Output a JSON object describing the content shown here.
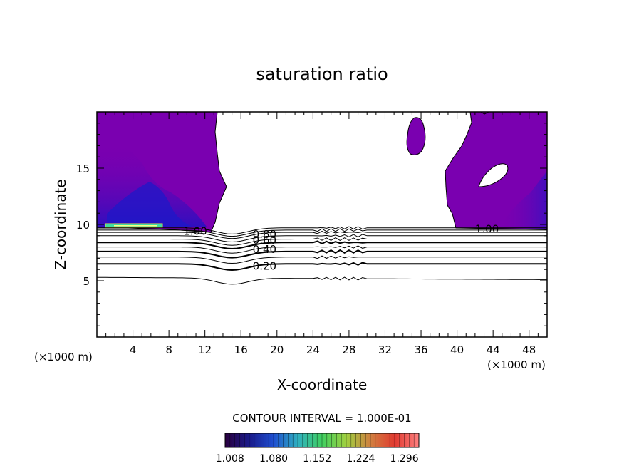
{
  "chart_data": {
    "type": "contour",
    "title": "saturation ratio",
    "xlabel": "X-coordinate",
    "ylabel": "Z-coordinate",
    "x_units_left": "(×1000 m)",
    "x_units_right": "(×1000 m)",
    "xlim": [
      0,
      50
    ],
    "ylim": [
      0,
      20
    ],
    "x_ticks": [
      4,
      8,
      12,
      16,
      20,
      24,
      28,
      32,
      36,
      40,
      44,
      48
    ],
    "y_ticks": [
      5,
      10,
      15
    ],
    "contour_labels": [
      {
        "text": "1.00",
        "x": 9.6,
        "z": 9.4
      },
      {
        "text": "1.00",
        "x": 42.0,
        "z": 9.6
      },
      {
        "text": "0.80",
        "x": 17.3,
        "z": 9.1
      },
      {
        "text": "0.60",
        "x": 17.3,
        "z": 8.6
      },
      {
        "text": "0.40",
        "x": 17.3,
        "z": 7.8
      },
      {
        "text": "0.20",
        "x": 17.3,
        "z": 6.3
      }
    ],
    "contour_interval_text": "CONTOUR INTERVAL = 1.000E-01",
    "colorbar": {
      "ticks": [
        "1.008",
        "1.080",
        "1.152",
        "1.224",
        "1.296"
      ],
      "range": [
        1.0,
        1.32
      ],
      "colors": [
        "#2a0040",
        "#1a1a8a",
        "#1f4fd0",
        "#2fb0c0",
        "#40d060",
        "#a0d040",
        "#d08040",
        "#e03a30",
        "#ff8080"
      ]
    },
    "fill_colors": {
      "supersaturated_low": "#7a00b0",
      "supersaturated_mid": "#4b00a0",
      "supersaturated_high": "#2e1ec8",
      "peak": "#40e0a0"
    }
  }
}
